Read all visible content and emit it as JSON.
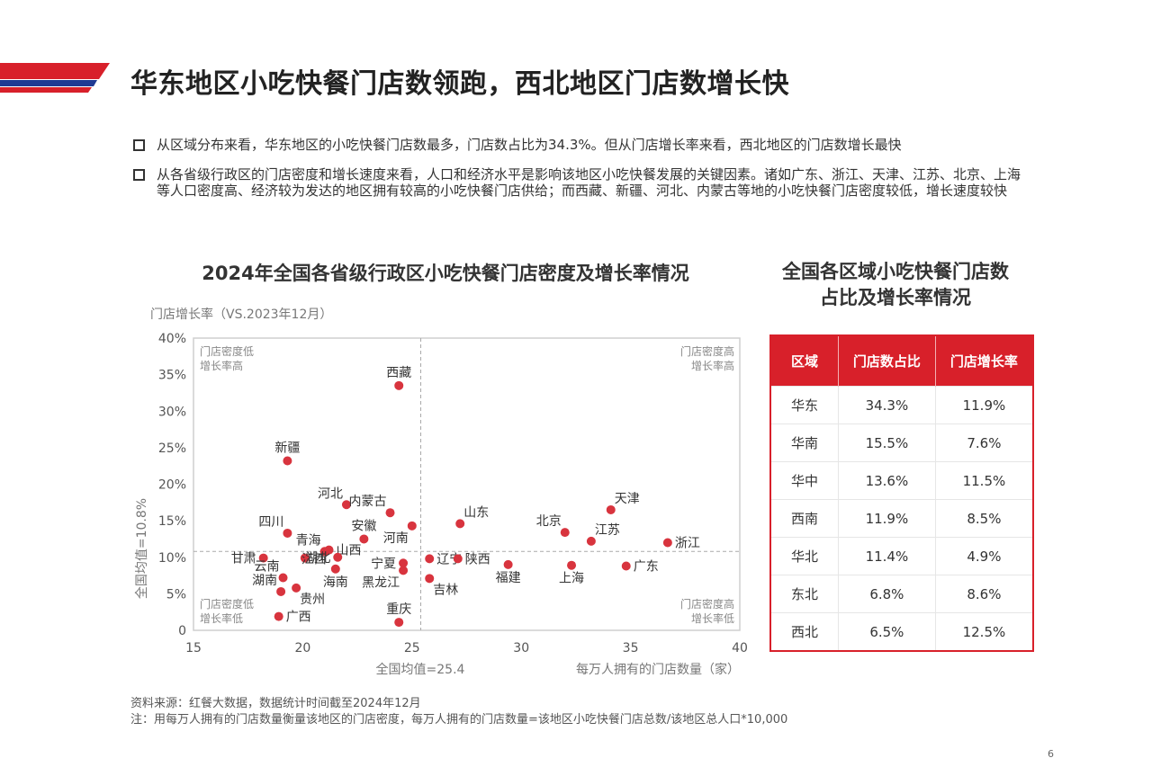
{
  "header": {
    "title": "华东地区小吃快餐门店数领跑，西北地区门店数增长快"
  },
  "bullets": [
    "从区域分布来看，华东地区的小吃快餐门店数最多，门店数占比为34.3%。但从门店增长率来看，西北地区的门店数增长最快",
    "从各省级行政区的门店密度和增长速度来看，人口和经济水平是影响该地区小吃快餐发展的关键因素。诸如广东、浙江、天津、江苏、北京、上海等人口密度高、经济较为发达的地区拥有较高的小吃快餐门店供给；而西藏、新疆、河北、内蒙古等地的小吃快餐门店密度较低，增长速度较快"
  ],
  "chart_data": {
    "type": "scatter",
    "title": "2024年全国各省级行政区小吃快餐门店密度及增长率情况",
    "xlabel": "每万人拥有的门店数量（家）",
    "ylabel": "门店增长率（VS.2023年12月）",
    "xlim": [
      15,
      40
    ],
    "ylim": [
      0,
      40
    ],
    "x_ticks": [
      "15",
      "20",
      "25",
      "30",
      "35",
      "40"
    ],
    "y_ticks": [
      "0",
      "5%",
      "10%",
      "15%",
      "20%",
      "25%",
      "30%",
      "35%",
      "40%"
    ],
    "x_avg": 25.4,
    "y_avg": 10.8,
    "x_avg_label": "全国均值=25.4",
    "y_avg_label": "全国均值=10.8%",
    "quadrants": {
      "top_left": "门店密度低\n增长率高",
      "top_right": "门店密度高\n增长率高",
      "bottom_left": "门店密度低\n增长率低",
      "bottom_right": "门店密度高\n增长率低"
    },
    "color": "#d8343e",
    "points": [
      {
        "name": "西藏",
        "x": 24.4,
        "y": 33.5,
        "pos": "above"
      },
      {
        "name": "新疆",
        "x": 19.3,
        "y": 23.2,
        "pos": "above"
      },
      {
        "name": "河北",
        "x": 22.0,
        "y": 17.2,
        "pos": "aboveleft"
      },
      {
        "name": "内蒙古",
        "x": 24.0,
        "y": 16.1,
        "pos": "aboveleft"
      },
      {
        "name": "天津",
        "x": 34.1,
        "y": 16.5,
        "pos": "aboveright"
      },
      {
        "name": "山东",
        "x": 27.2,
        "y": 14.6,
        "pos": "aboveright"
      },
      {
        "name": "四川",
        "x": 19.3,
        "y": 13.3,
        "pos": "aboveleft"
      },
      {
        "name": "河南",
        "x": 25.0,
        "y": 14.3,
        "pos": "belowleft"
      },
      {
        "name": "北京",
        "x": 32.0,
        "y": 13.4,
        "pos": "aboveleft"
      },
      {
        "name": "安徽",
        "x": 22.8,
        "y": 12.5,
        "pos": "above"
      },
      {
        "name": "江苏",
        "x": 33.2,
        "y": 12.2,
        "pos": "aboveright"
      },
      {
        "name": "浙江",
        "x": 36.7,
        "y": 12.0,
        "pos": "right"
      },
      {
        "name": "青海",
        "x": 21.0,
        "y": 10.8,
        "pos": "aboveleft"
      },
      {
        "name": "山西",
        "x": 21.2,
        "y": 11.0,
        "pos": "right"
      },
      {
        "name": "甘肃",
        "x": 18.2,
        "y": 9.9,
        "pos": "left"
      },
      {
        "name": "江西",
        "x": 20.1,
        "y": 9.9,
        "pos": "belowright2"
      },
      {
        "name": "湖北",
        "x": 21.6,
        "y": 10.0,
        "pos": "left"
      },
      {
        "name": "辽宁",
        "x": 25.8,
        "y": 9.8,
        "pos": "right"
      },
      {
        "name": "陕西",
        "x": 27.1,
        "y": 9.8,
        "pos": "right"
      },
      {
        "name": "宁夏",
        "x": 24.6,
        "y": 9.2,
        "pos": "left"
      },
      {
        "name": "福建",
        "x": 29.4,
        "y": 9.0,
        "pos": "below"
      },
      {
        "name": "上海",
        "x": 32.3,
        "y": 8.9,
        "pos": "below"
      },
      {
        "name": "广东",
        "x": 34.8,
        "y": 8.8,
        "pos": "right"
      },
      {
        "name": "黑龙江",
        "x": 24.6,
        "y": 8.2,
        "pos": "belowleft"
      },
      {
        "name": "海南",
        "x": 21.5,
        "y": 8.4,
        "pos": "below"
      },
      {
        "name": "云南",
        "x": 19.1,
        "y": 7.2,
        "pos": "aboveleft"
      },
      {
        "name": "吉林",
        "x": 25.8,
        "y": 7.1,
        "pos": "belowright"
      },
      {
        "name": "湖南",
        "x": 19.0,
        "y": 5.3,
        "pos": "aboveleft"
      },
      {
        "name": "贵州",
        "x": 19.7,
        "y": 5.8,
        "pos": "belowright"
      },
      {
        "name": "广西",
        "x": 18.9,
        "y": 1.9,
        "pos": "right"
      },
      {
        "name": "重庆",
        "x": 24.4,
        "y": 1.1,
        "pos": "above"
      }
    ]
  },
  "table": {
    "title_line1": "全国各区域小吃快餐门店数",
    "title_line2": "占比及增长率情况",
    "headers": [
      "区域",
      "门店数占比",
      "门店增长率"
    ],
    "rows": [
      [
        "华东",
        "34.3%",
        "11.9%"
      ],
      [
        "华南",
        "15.5%",
        "7.6%"
      ],
      [
        "华中",
        "13.6%",
        "11.5%"
      ],
      [
        "西南",
        "11.9%",
        "8.5%"
      ],
      [
        "华北",
        "11.4%",
        "4.9%"
      ],
      [
        "东北",
        "6.8%",
        "8.6%"
      ],
      [
        "西北",
        "6.5%",
        "12.5%"
      ]
    ]
  },
  "footer": {
    "source": "资料来源：红餐大数据，数据统计时间截至2024年12月",
    "note": "注：用每万人拥有的门店数量衡量该地区的门店密度，每万人拥有的门店数量=该地区小吃快餐门店总数/该地区总人口*10,000",
    "page": "6"
  },
  "colors": {
    "accent": "#d8202a",
    "navy": "#1f3a93"
  }
}
